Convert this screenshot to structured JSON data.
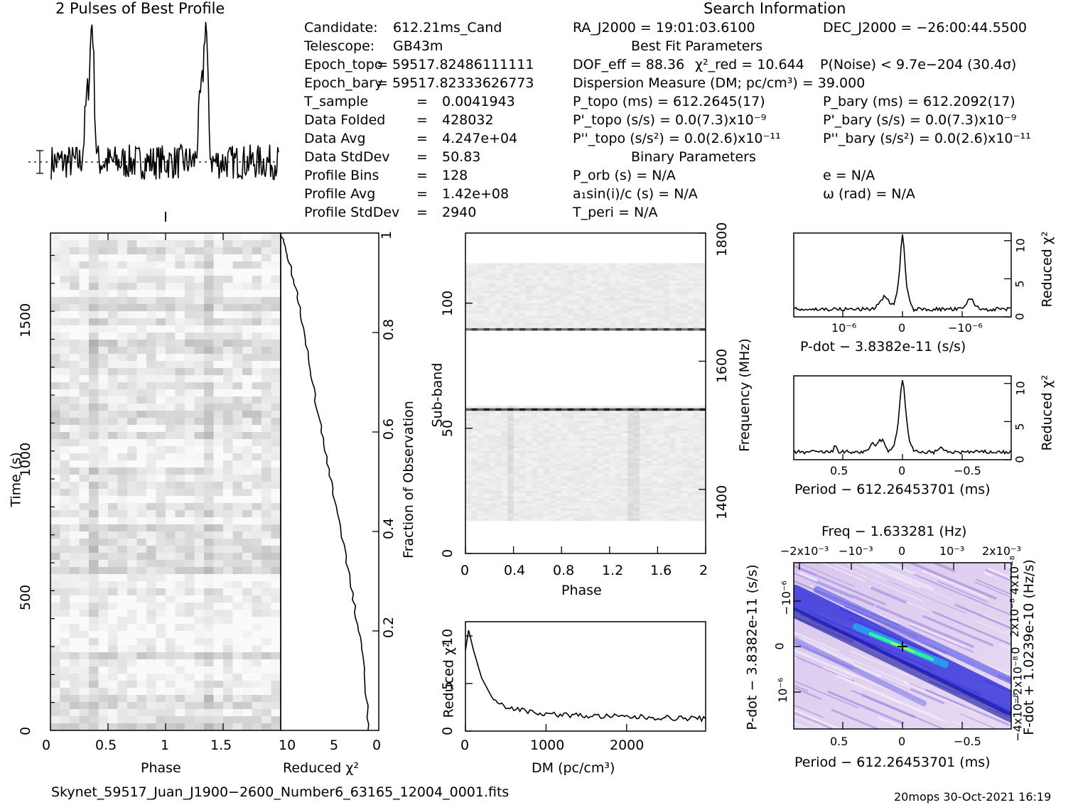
{
  "profile_title": "2 Pulses of Best Profile",
  "search_title": "Search Information",
  "info_col1": [
    {
      "label": "Candidate:",
      "value": "612.21ms_Cand"
    },
    {
      "label": "Telescope:",
      "value": "GB43m"
    },
    {
      "label": "Epoch_topo",
      "value": "= 59517.82486111111"
    },
    {
      "label": "Epoch_bary",
      "value": "= 59517.82333626773"
    },
    {
      "label": "T_sample",
      "value": "0.0041943"
    },
    {
      "label": "Data Folded",
      "value": "428032"
    },
    {
      "label": "Data Avg",
      "value": "4.247e+04"
    },
    {
      "label": "Data StdDev",
      "value": "50.83"
    },
    {
      "label": "Profile Bins",
      "value": "128"
    },
    {
      "label": "Profile Avg",
      "value": "1.42e+08"
    },
    {
      "label": "Profile StdDev",
      "value": "2940"
    }
  ],
  "info_right": {
    "ra": "RA_J2000 = 19:01:03.6100",
    "dec": "DEC_J2000 = −26:00:44.5500",
    "best_fit_header": "Best Fit Parameters",
    "dof": "DOF_eff = 88.36",
    "chi2": "χ²_red = 10.644",
    "pnoise": "P(Noise) < 9.7e−204  (30.4σ)",
    "dm": "Dispersion Measure (DM; pc/cm³) = 39.000",
    "ptopo": "P_topo (ms) =  612.2645(17)",
    "pbary": "P_bary (ms) =  612.2092(17)",
    "pdtopo": "P'_topo (s/s) = 0.0(7.3)x10⁻⁹",
    "pdbary": "P'_bary (s/s) = 0.0(7.3)x10⁻⁹",
    "pddtopo": "P''_topo (s/s²) = 0.0(2.6)x10⁻¹¹",
    "pddbary": "P''_bary (s/s²) = 0.0(2.6)x10⁻¹¹",
    "binary_header": "Binary Parameters",
    "porb": "P_orb (s) = N/A",
    "e": "e = N/A",
    "asini": "a₁sin(i)/c (s) = N/A",
    "omega": "ω (rad) = N/A",
    "tperi": "T_peri = N/A"
  },
  "footer_file": "Skynet_59517_Juan_J1900−2600_Number6_63165_12004_0001.fits",
  "footer_stamp": "20mops 30-Oct-2021 16:19",
  "chart_data": [
    {
      "type": "line",
      "name": "profile",
      "title": "2 Pulses of Best Profile",
      "xlim": [
        0,
        2
      ],
      "pulse_phases": [
        0.36,
        1.36
      ],
      "pulse_peak": 1.0
    },
    {
      "type": "heatmap",
      "name": "time-phase",
      "xlabel": "Phase",
      "ylabel": "Time (s)",
      "xlim": [
        0,
        2
      ],
      "ylim": [
        0,
        1780
      ],
      "x_ticks": [
        "0",
        "0.5",
        "1",
        "1.5"
      ],
      "y_ticks": [
        "0",
        "500",
        "1000",
        "1500"
      ]
    },
    {
      "type": "line",
      "name": "reduced-chi2-vs-time",
      "xlabel": "Reduced χ²",
      "ylabel": "Fraction of Observation",
      "xlim": [
        10.3,
        0
      ],
      "ylim": [
        0,
        1
      ],
      "x_ticks": [
        "10",
        "5",
        "0"
      ],
      "y_ticks": [
        "0.2",
        "0.4",
        "0.6",
        "0.8",
        "1"
      ],
      "points": [
        [
          1.05,
          0
        ],
        [
          1.4,
          0.1
        ],
        [
          2.1,
          0.2
        ],
        [
          3.0,
          0.3
        ],
        [
          4.0,
          0.4
        ],
        [
          5.0,
          0.5
        ],
        [
          6.0,
          0.6
        ],
        [
          7.0,
          0.7
        ],
        [
          7.8,
          0.8
        ],
        [
          8.6,
          0.88
        ],
        [
          9.5,
          0.95
        ],
        [
          10.3,
          1
        ]
      ]
    },
    {
      "type": "heatmap",
      "name": "subband-phase",
      "xlabel": "Phase",
      "ylabel": "Sub-band",
      "ylabel_right": "Frequency (MHz)",
      "xlim": [
        0,
        2
      ],
      "ylim": [
        0,
        128
      ],
      "x_ticks": [
        "0",
        "0.4",
        "0.8",
        "1.2",
        "1.6",
        "2"
      ],
      "y_ticks": [
        "0",
        "50",
        "100"
      ],
      "right_ticks": [
        "1400",
        "1600",
        "1800"
      ]
    },
    {
      "type": "line",
      "name": "dm-curve",
      "xlabel": "DM (pc/cm³)",
      "ylabel": "Reduced χ²",
      "xlim": [
        0,
        2980
      ],
      "ylim": [
        0,
        11.5
      ],
      "x_ticks": [
        "0",
        "1000",
        "2000"
      ],
      "y_ticks": [
        "0",
        "5",
        "10"
      ],
      "points": [
        [
          0,
          8.5
        ],
        [
          39,
          10.6
        ],
        [
          100,
          8.5
        ],
        [
          200,
          5.6
        ],
        [
          300,
          4.0
        ],
        [
          400,
          3.1
        ],
        [
          500,
          2.6
        ],
        [
          700,
          2.2
        ],
        [
          1000,
          1.8
        ],
        [
          1500,
          1.6
        ],
        [
          2000,
          1.5
        ],
        [
          2500,
          1.4
        ],
        [
          2980,
          1.3
        ]
      ]
    },
    {
      "type": "line",
      "name": "pdot-curve",
      "xlabel": "P-dot − 3.8382e-11 (s/s)",
      "ylabel": "Reduced χ²",
      "ylim": [
        0,
        11
      ],
      "x_ticks": [
        "10⁻⁶",
        "0",
        "−10⁻⁶"
      ],
      "y_ticks": [
        "0",
        "5",
        "10"
      ],
      "peak": 10.6
    },
    {
      "type": "line",
      "name": "period-curve",
      "xlabel": "Period − 612.26453701 (ms)",
      "ylabel": "Reduced χ²",
      "ylim": [
        0,
        11
      ],
      "x_ticks": [
        "0.5",
        "0",
        "−0.5"
      ],
      "y_ticks": [
        "0",
        "5",
        "10"
      ],
      "peak": 10.6
    },
    {
      "type": "heatmap",
      "name": "period-pdot",
      "title": "Freq − 1.633281 (Hz)",
      "xlabel": "Period − 612.26453701 (ms)",
      "ylabel": "P-dot − 3.8382e-11 (s/s)",
      "ylabel_right": "F-dot + 1.0239e-10 (Hz/s)",
      "top_ticks": [
        "−2x10⁻³",
        "−10⁻³",
        "0",
        "10⁻³",
        "2x10⁻³"
      ],
      "x_ticks": [
        "0.5",
        "0",
        "−0.5"
      ],
      "y_ticks": [
        "−10⁻⁶",
        "0",
        "10⁻⁶"
      ],
      "right_ticks": [
        "4x10⁻⁸",
        "2x10⁻⁸",
        "0",
        "−2x10⁻⁸",
        "−4x10⁻⁸"
      ]
    }
  ],
  "colors": {
    "ink": "#000000",
    "map_dark": "#1a1ad0",
    "map_light": "#e6d6f0",
    "map_peak": "#30f0a0"
  }
}
